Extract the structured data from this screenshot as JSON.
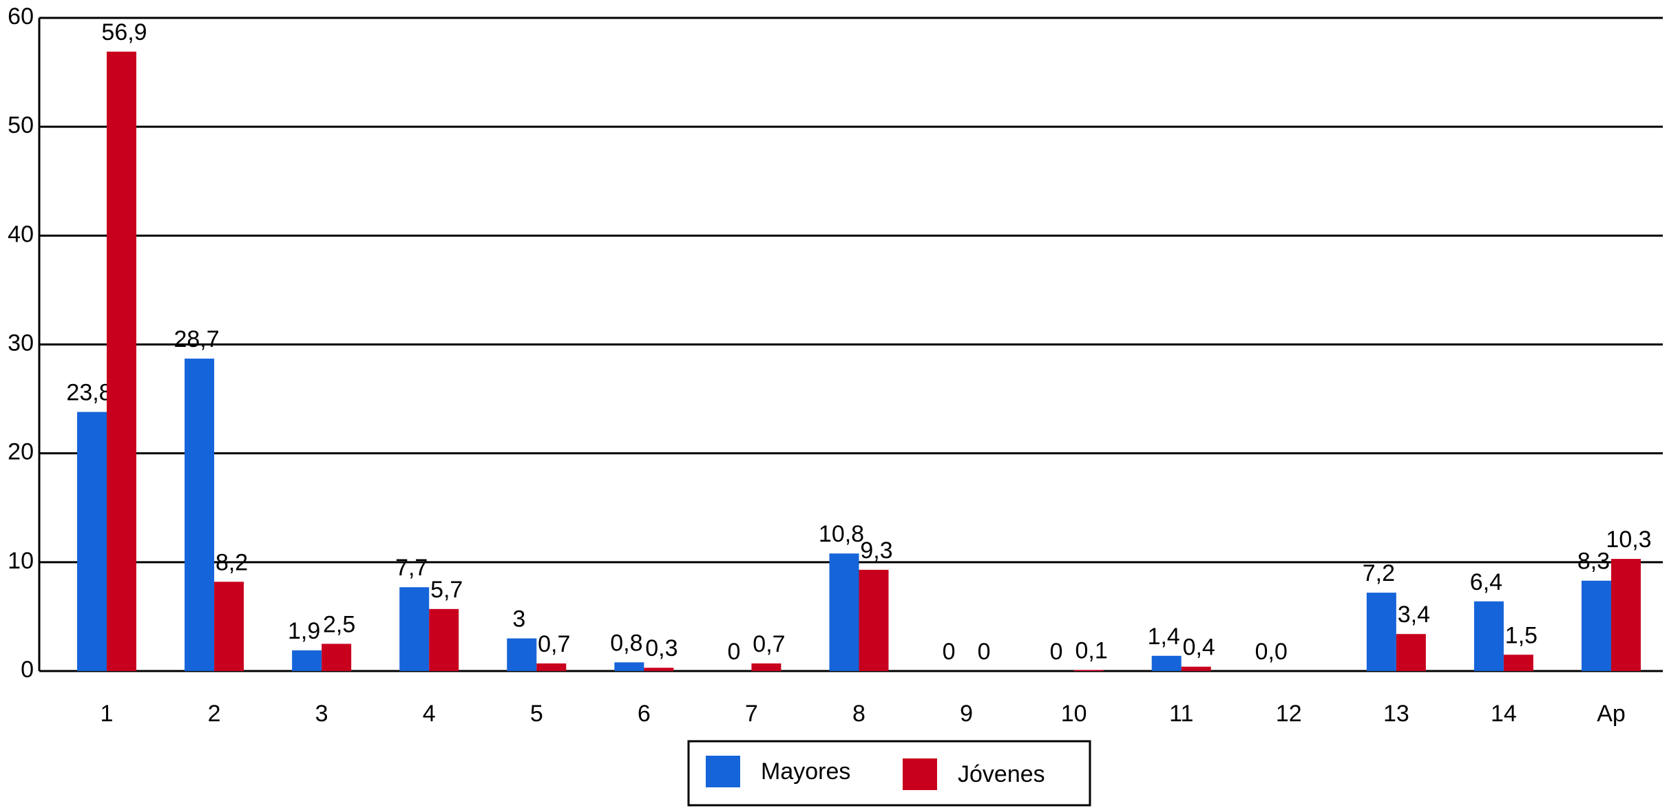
{
  "chart_data": {
    "type": "bar",
    "categories": [
      "1",
      "2",
      "3",
      "4",
      "5",
      "6",
      "7",
      "8",
      "9",
      "10",
      "11",
      "12",
      "13",
      "14",
      "Ap"
    ],
    "series": [
      {
        "name": "Mayores",
        "color": "#1664d9",
        "values": [
          23.8,
          28.7,
          1.9,
          7.7,
          3,
          0.8,
          0,
          10.8,
          0,
          0,
          1.4,
          0,
          7.2,
          6.4,
          8.3
        ],
        "value_labels": [
          "23,8",
          "28,7",
          "1,9",
          "7,7",
          "3",
          "0,8",
          "0",
          "10,8",
          "0",
          "0",
          "1,4",
          "0,0",
          "7,2",
          "6,4",
          "8,3"
        ]
      },
      {
        "name": "Jóvenes",
        "color": "#c8001e",
        "values": [
          56.9,
          8.2,
          2.5,
          5.7,
          0.7,
          0.3,
          0.7,
          9.3,
          0,
          0.1,
          0.4,
          0,
          3.4,
          1.5,
          10.3
        ],
        "value_labels": [
          "56,9",
          "8,2",
          "2,5",
          "5,7",
          "0,7",
          "0,3",
          "0,7",
          "9,3",
          "0",
          "0,1",
          "0,4",
          null,
          "3,4",
          "1,5",
          "10,3"
        ]
      }
    ],
    "ylim": [
      0,
      60
    ],
    "yticks": [
      0,
      10,
      20,
      30,
      40,
      50,
      60
    ],
    "grid": true,
    "legend": "bottom"
  }
}
